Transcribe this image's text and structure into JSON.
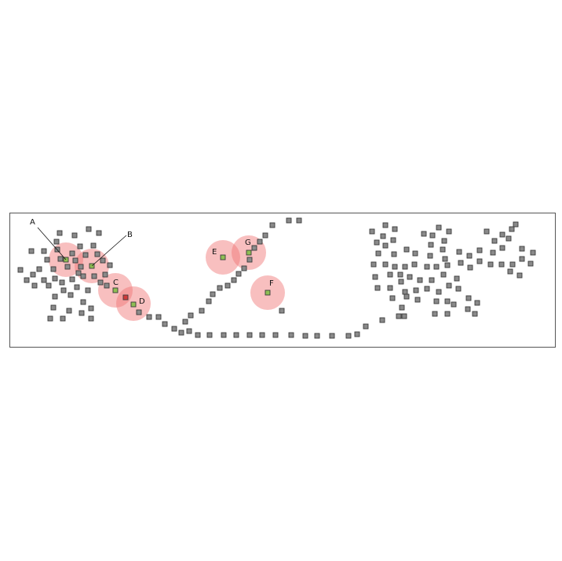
{
  "diagram": {
    "markers": [
      {
        "id": "A",
        "label": "A"
      },
      {
        "id": "B",
        "label": "B"
      },
      {
        "id": "C",
        "label": "C"
      },
      {
        "id": "D",
        "label": "D"
      },
      {
        "id": "E",
        "label": "E"
      },
      {
        "id": "F",
        "label": "F"
      },
      {
        "id": "G",
        "label": "G"
      }
    ],
    "colors": {
      "point_fill": "#8a8a8a",
      "selected_point_fill": "#8fbf54",
      "outlier_point_fill": "#d23a3a",
      "halo_fill": "#f07070",
      "frame": "#555555"
    }
  }
}
